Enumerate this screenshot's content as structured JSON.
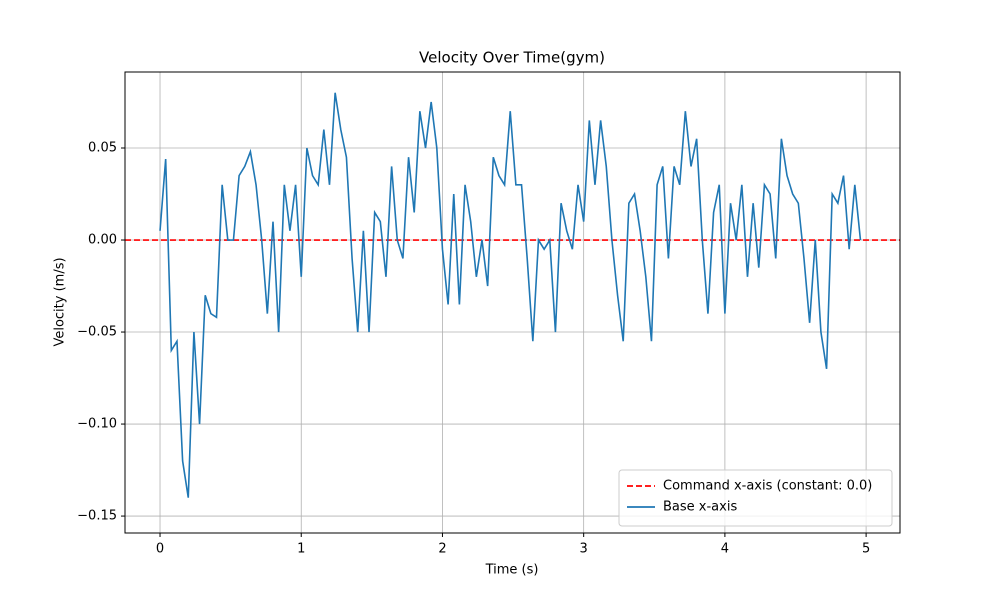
{
  "chart_data": {
    "type": "line",
    "title": "Velocity Over Time(gym)",
    "x_label": "Time (s)",
    "y_label": "Velocity (m/s)",
    "xlim": [
      -0.248,
      5.24
    ],
    "ylim": [
      -0.1592,
      0.0913
    ],
    "xticks": [
      0,
      1,
      2,
      3,
      4,
      5
    ],
    "yticks": [
      {
        "value": -0.15,
        "label": "−0.15"
      },
      {
        "value": -0.1,
        "label": "−0.10"
      },
      {
        "value": -0.05,
        "label": "−0.05"
      },
      {
        "value": 0,
        "label": "0.00"
      },
      0.05
    ],
    "grid": true,
    "legend": "lower right",
    "hlines": [
      {
        "name": "Command x-axis (constant: 0.0)",
        "value": 0,
        "color": "#ff0000",
        "dash": true
      }
    ],
    "x": [
      0,
      0.04,
      0.08,
      0.12,
      0.16,
      0.2,
      0.24,
      0.28,
      0.32,
      0.36,
      0.4,
      0.44,
      0.48,
      0.52,
      0.56,
      0.6,
      0.64,
      0.68,
      0.72,
      0.76,
      0.8,
      0.84,
      0.88,
      0.92,
      0.96,
      1,
      1.04,
      1.08,
      1.12,
      1.16,
      1.2,
      1.24,
      1.28,
      1.32,
      1.36,
      1.4,
      1.44,
      1.48,
      1.52,
      1.56,
      1.6,
      1.64,
      1.68,
      1.72,
      1.76,
      1.8,
      1.84,
      1.88,
      1.92,
      1.96,
      2,
      2.04,
      2.08,
      2.12,
      2.16,
      2.2,
      2.24,
      2.28,
      2.32,
      2.36,
      2.4,
      2.44,
      2.48,
      2.52,
      2.56,
      2.6,
      2.64,
      2.68,
      2.72,
      2.76,
      2.8,
      2.84,
      2.88,
      2.92,
      2.96,
      3,
      3.04,
      3.08,
      3.12,
      3.16,
      3.2,
      3.24,
      3.28,
      3.32,
      3.36,
      3.4,
      3.44,
      3.48,
      3.52,
      3.56,
      3.6,
      3.64,
      3.68,
      3.72,
      3.76,
      3.8,
      3.84,
      3.88,
      3.92,
      3.96,
      4,
      4.04,
      4.08,
      4.12,
      4.16,
      4.2,
      4.24,
      4.28,
      4.32,
      4.36,
      4.4,
      4.44,
      4.48,
      4.52,
      4.56,
      4.6,
      4.64,
      4.68,
      4.72,
      4.76,
      4.8,
      4.84,
      4.88,
      4.92,
      4.96
    ],
    "series": [
      {
        "name": "Base x-axis",
        "color": "#1f77b4",
        "values": [
          0.005,
          0.044,
          -0.06,
          -0.055,
          -0.12,
          -0.14,
          -0.05,
          -0.1,
          -0.03,
          -0.04,
          -0.042,
          0.03,
          0,
          0,
          0.035,
          0.04,
          0.048,
          0.03,
          0,
          -0.04,
          0.01,
          -0.05,
          0.03,
          0.005,
          0.03,
          -0.02,
          0.05,
          0.035,
          0.03,
          0.06,
          0.03,
          0.08,
          0.06,
          0.045,
          -0.01,
          -0.05,
          0.005,
          -0.05,
          0.015,
          0.01,
          -0.02,
          0.04,
          0,
          -0.01,
          0.045,
          0.015,
          0.07,
          0.05,
          0.075,
          0.05,
          -0.005,
          -0.035,
          0.025,
          -0.035,
          0.03,
          0.01,
          -0.02,
          0,
          -0.025,
          0.045,
          0.035,
          0.03,
          0.07,
          0.03,
          0.03,
          -0.01,
          -0.055,
          0,
          -0.005,
          0,
          -0.05,
          0.02,
          0.005,
          -0.005,
          0.03,
          0.01,
          0.065,
          0.03,
          0.065,
          0.04,
          0,
          -0.03,
          -0.055,
          0.02,
          0.025,
          0.005,
          -0.02,
          -0.055,
          0.03,
          0.04,
          -0.01,
          0.04,
          0.03,
          0.07,
          0.04,
          0.055,
          0,
          -0.04,
          0.015,
          0.03,
          -0.04,
          0.02,
          0,
          0.03,
          -0.02,
          0.02,
          -0.015,
          0.03,
          0.025,
          -0.01,
          0.055,
          0.035,
          0.025,
          0.02,
          -0.01,
          -0.045,
          0,
          -0.05,
          -0.07,
          0.025,
          0.02,
          0.035,
          -0.005,
          0.03,
          0
        ]
      }
    ]
  }
}
